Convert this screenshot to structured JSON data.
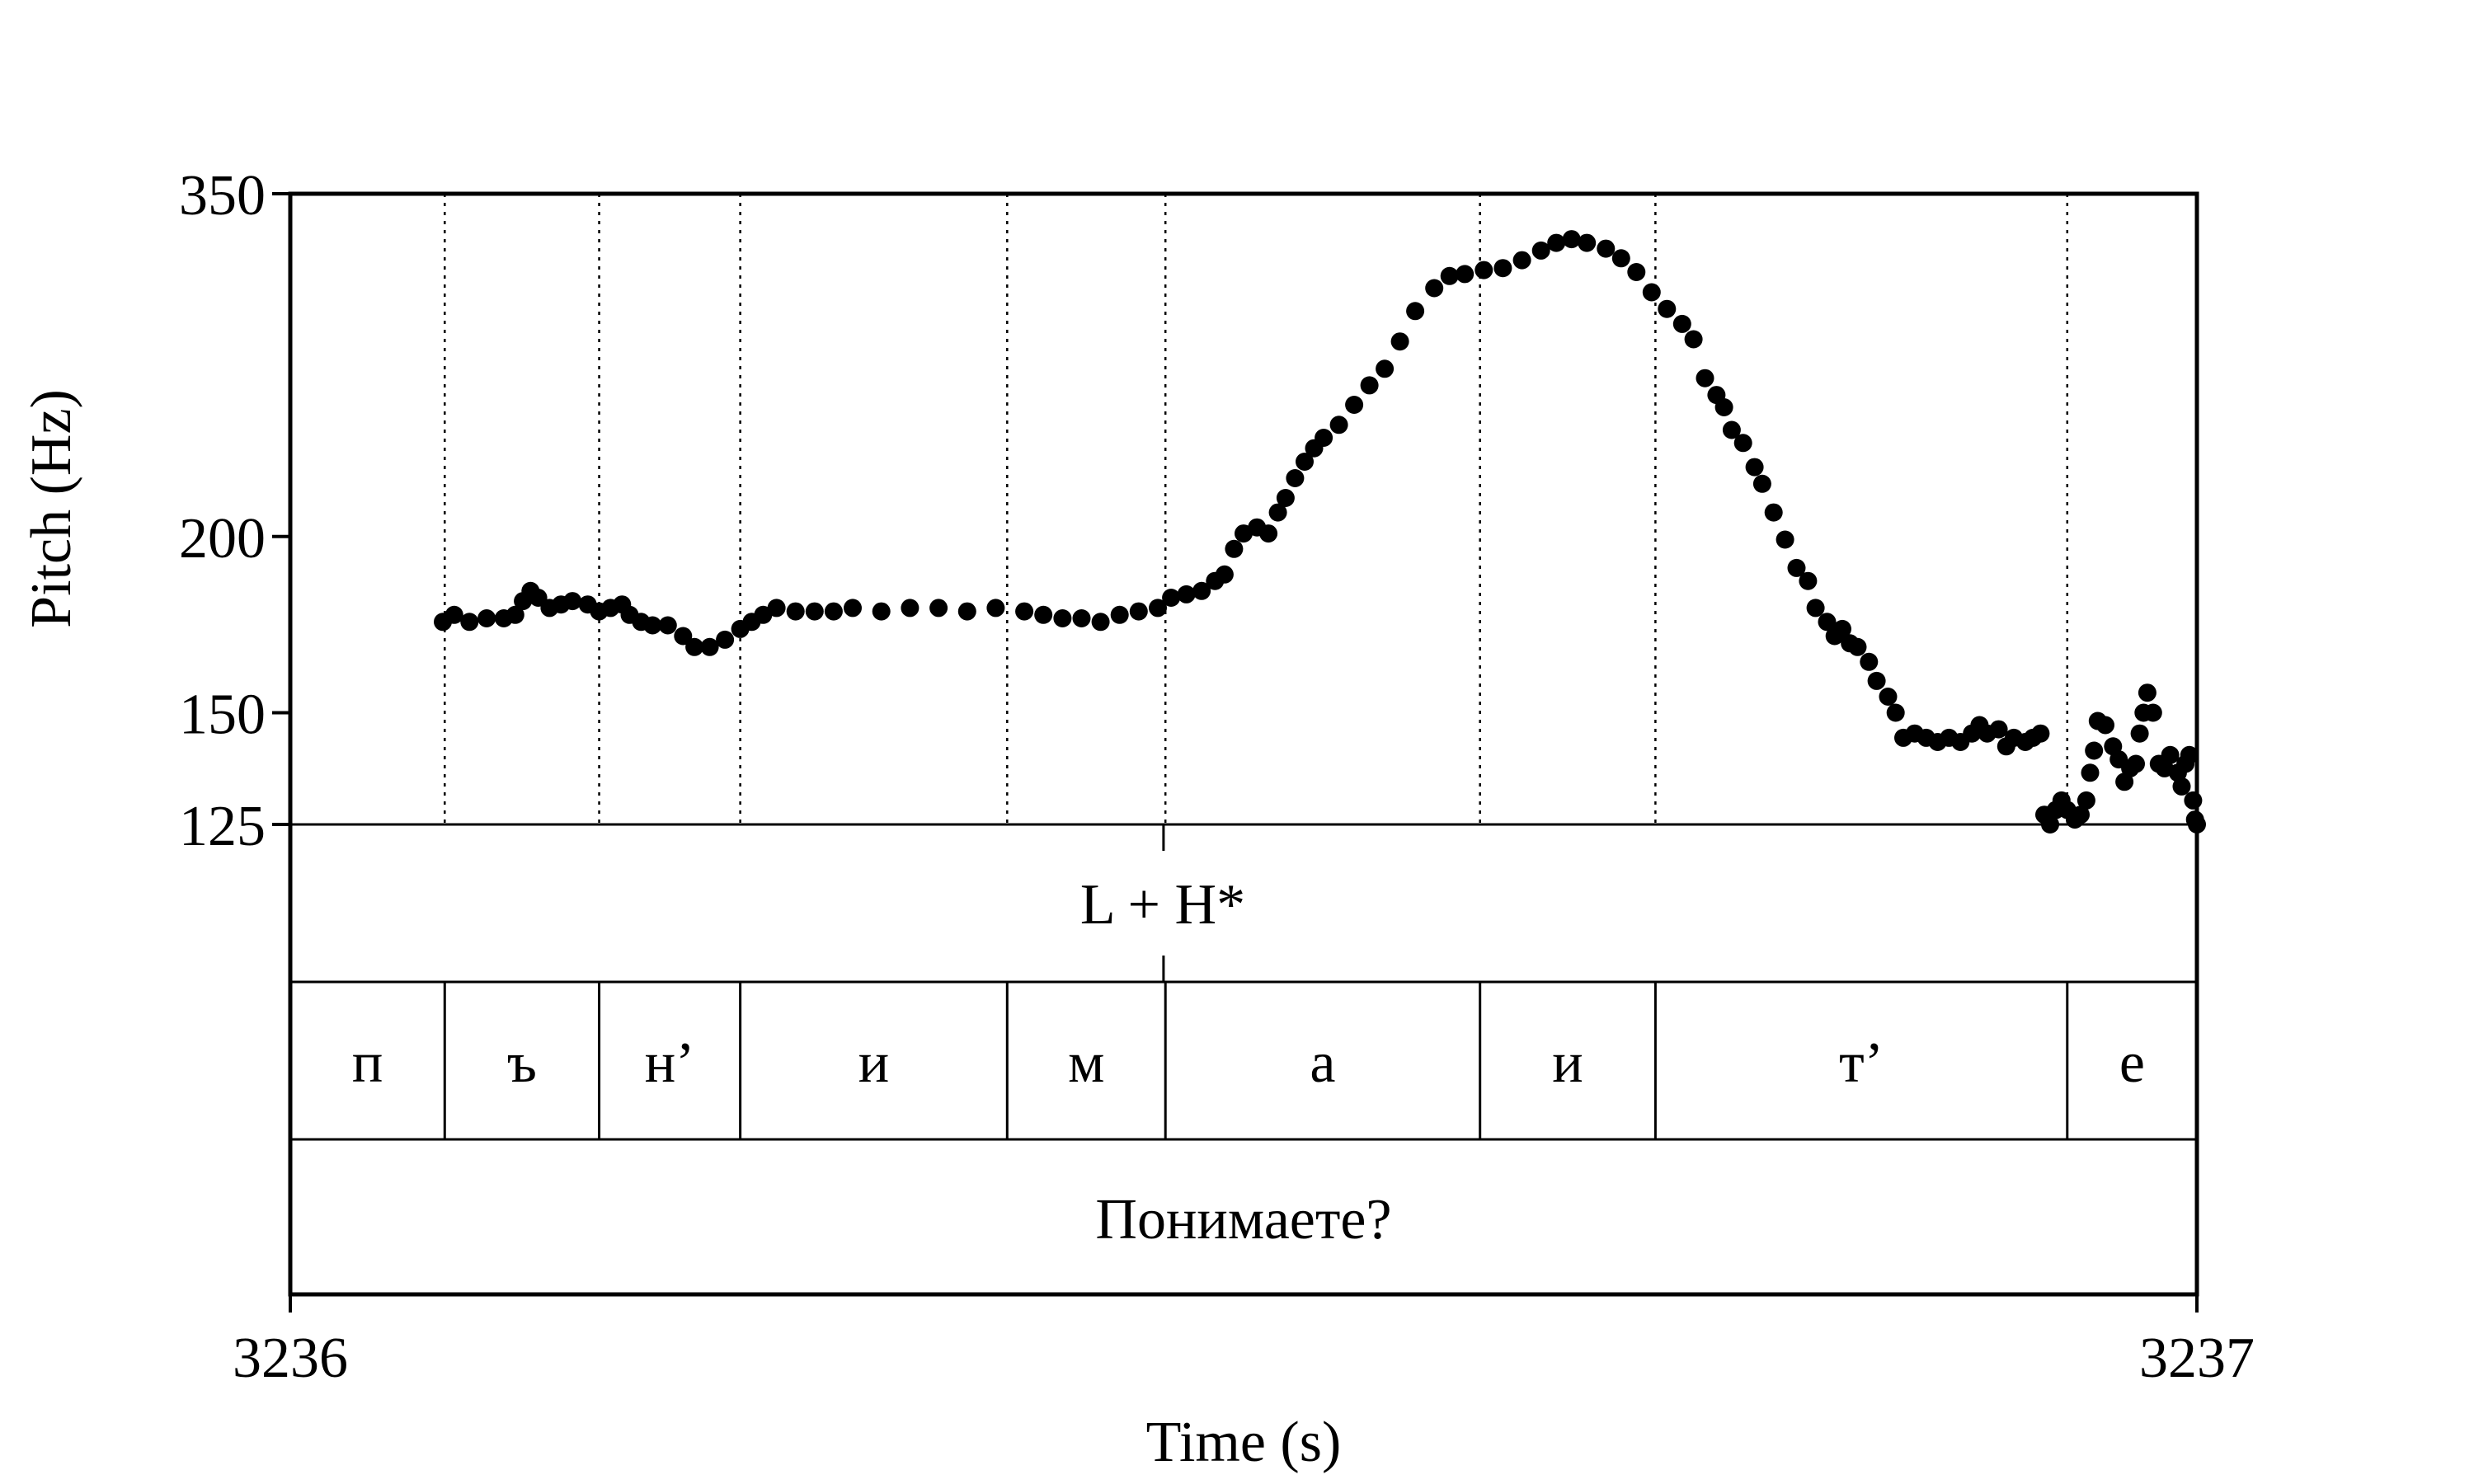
{
  "chart_data": {
    "type": "scatter",
    "ylabel": "Pitch (Hz)",
    "xlabel": "Time (s)",
    "xlim": [
      3236,
      3237
    ],
    "ylim": [
      125,
      350
    ],
    "y_scale": "log",
    "x_tick_labels": [
      "3236",
      "3237"
    ],
    "y_tick_labels": [
      "125",
      "150",
      "200",
      "350"
    ],
    "y_ticks": [
      125,
      150,
      200,
      350
    ],
    "grid": "dotted vertical lines at segment boundaries",
    "legend": "none",
    "series": [
      {
        "marker_color": "#000000",
        "points": [
          [
            3236.08,
            174
          ],
          [
            3236.086,
            176
          ],
          [
            3236.094,
            174
          ],
          [
            3236.103,
            175
          ],
          [
            3236.112,
            175
          ],
          [
            3236.118,
            176
          ],
          [
            3236.122,
            180
          ],
          [
            3236.126,
            183
          ],
          [
            3236.13,
            181
          ],
          [
            3236.136,
            178
          ],
          [
            3236.142,
            179
          ],
          [
            3236.148,
            180
          ],
          [
            3236.156,
            179
          ],
          [
            3236.162,
            177
          ],
          [
            3236.168,
            178
          ],
          [
            3236.174,
            179
          ],
          [
            3236.178,
            176
          ],
          [
            3236.184,
            174
          ],
          [
            3236.19,
            173
          ],
          [
            3236.198,
            173
          ],
          [
            3236.206,
            170
          ],
          [
            3236.212,
            167
          ],
          [
            3236.22,
            167
          ],
          [
            3236.228,
            169
          ],
          [
            3236.236,
            172
          ],
          [
            3236.242,
            174
          ],
          [
            3236.248,
            176
          ],
          [
            3236.255,
            178
          ],
          [
            3236.265,
            177
          ],
          [
            3236.275,
            177
          ],
          [
            3236.285,
            177
          ],
          [
            3236.295,
            178
          ],
          [
            3236.31,
            177
          ],
          [
            3236.325,
            178
          ],
          [
            3236.34,
            178
          ],
          [
            3236.355,
            177
          ],
          [
            3236.37,
            178
          ],
          [
            3236.385,
            177
          ],
          [
            3236.395,
            176
          ],
          [
            3236.405,
            175
          ],
          [
            3236.415,
            175
          ],
          [
            3236.425,
            174
          ],
          [
            3236.435,
            176
          ],
          [
            3236.445,
            177
          ],
          [
            3236.455,
            178
          ],
          [
            3236.462,
            181
          ],
          [
            3236.47,
            182
          ],
          [
            3236.478,
            183
          ],
          [
            3236.485,
            186
          ],
          [
            3236.49,
            188
          ],
          [
            3236.495,
            196
          ],
          [
            3236.5,
            201
          ],
          [
            3236.507,
            203
          ],
          [
            3236.513,
            201
          ],
          [
            3236.518,
            208
          ],
          [
            3236.522,
            213
          ],
          [
            3236.527,
            220
          ],
          [
            3236.532,
            226
          ],
          [
            3236.537,
            231
          ],
          [
            3236.542,
            235
          ],
          [
            3236.55,
            240
          ],
          [
            3236.558,
            248
          ],
          [
            3236.566,
            256
          ],
          [
            3236.574,
            263
          ],
          [
            3236.582,
            275
          ],
          [
            3236.59,
            289
          ],
          [
            3236.6,
            300
          ],
          [
            3236.608,
            306
          ],
          [
            3236.616,
            307
          ],
          [
            3236.626,
            309
          ],
          [
            3236.636,
            310
          ],
          [
            3236.646,
            314
          ],
          [
            3236.656,
            319
          ],
          [
            3236.664,
            323
          ],
          [
            3236.672,
            325
          ],
          [
            3236.68,
            323
          ],
          [
            3236.69,
            320
          ],
          [
            3236.698,
            315
          ],
          [
            3236.706,
            308
          ],
          [
            3236.714,
            298
          ],
          [
            3236.722,
            290
          ],
          [
            3236.73,
            283
          ],
          [
            3236.736,
            276
          ],
          [
            3236.742,
            259
          ],
          [
            3236.748,
            252
          ],
          [
            3236.752,
            247
          ],
          [
            3236.756,
            238
          ],
          [
            3236.762,
            233
          ],
          [
            3236.768,
            224
          ],
          [
            3236.772,
            218
          ],
          [
            3236.778,
            208
          ],
          [
            3236.784,
            199
          ],
          [
            3236.79,
            190
          ],
          [
            3236.796,
            186
          ],
          [
            3236.8,
            178
          ],
          [
            3236.806,
            174
          ],
          [
            3236.81,
            170
          ],
          [
            3236.814,
            172
          ],
          [
            3236.818,
            168
          ],
          [
            3236.822,
            167
          ],
          [
            3236.828,
            163
          ],
          [
            3236.832,
            158
          ],
          [
            3236.838,
            154
          ],
          [
            3236.842,
            150
          ],
          [
            3236.846,
            144
          ],
          [
            3236.852,
            145
          ],
          [
            3236.858,
            144
          ],
          [
            3236.864,
            143
          ],
          [
            3236.87,
            144
          ],
          [
            3236.876,
            143
          ],
          [
            3236.882,
            145
          ],
          [
            3236.886,
            147
          ],
          [
            3236.89,
            145
          ],
          [
            3236.896,
            146
          ],
          [
            3236.9,
            142
          ],
          [
            3236.904,
            144
          ],
          [
            3236.91,
            143
          ],
          [
            3236.914,
            144
          ],
          [
            3236.918,
            145
          ],
          [
            3236.92,
            127
          ],
          [
            3236.923,
            125
          ],
          [
            3236.926,
            128
          ],
          [
            3236.929,
            130
          ],
          [
            3236.932,
            128
          ],
          [
            3236.936,
            126
          ],
          [
            3236.939,
            127
          ],
          [
            3236.942,
            130
          ],
          [
            3236.944,
            136
          ],
          [
            3236.946,
            141
          ],
          [
            3236.948,
            148
          ],
          [
            3236.952,
            147
          ],
          [
            3236.956,
            142
          ],
          [
            3236.959,
            139
          ],
          [
            3236.962,
            134
          ],
          [
            3236.965,
            137
          ],
          [
            3236.968,
            138
          ],
          [
            3236.97,
            145
          ],
          [
            3236.972,
            150
          ],
          [
            3236.974,
            155
          ],
          [
            3236.977,
            150
          ],
          [
            3236.98,
            138
          ],
          [
            3236.983,
            137
          ],
          [
            3236.986,
            140
          ],
          [
            3236.99,
            136
          ],
          [
            3236.992,
            133
          ],
          [
            3236.994,
            138
          ],
          [
            3236.996,
            140
          ],
          [
            3236.998,
            130
          ],
          [
            3236.999,
            126
          ],
          [
            3237.0,
            125
          ]
        ]
      }
    ]
  },
  "tiers": {
    "tones": {
      "labels": [
        "L + H*"
      ],
      "marker": 3236.458
    },
    "segments": {
      "boundaries": [
        3236.0,
        3236.081,
        3236.162,
        3236.236,
        3236.376,
        3236.459,
        3236.624,
        3236.716,
        3236.932,
        3237.0
      ],
      "labels": [
        "п",
        "ъ",
        "н’",
        "и",
        "м",
        "а",
        "и",
        "т’",
        "е"
      ]
    },
    "words": {
      "labels": [
        "Понимаете?"
      ]
    }
  }
}
